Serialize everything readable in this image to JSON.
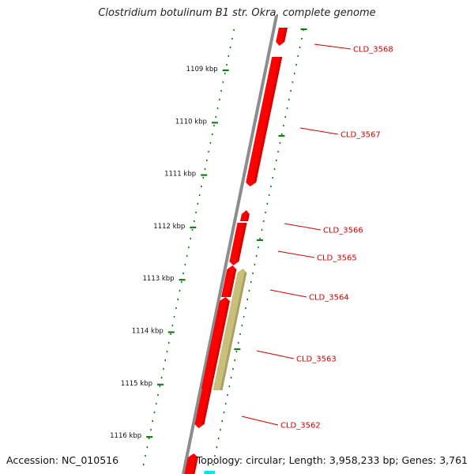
{
  "title": "Clostridium botulinum B1 str. Okra, complete genome",
  "accession_text": "Accession: NC_010516",
  "summary_text": "Topology: circular; Length: 3,958,233 bp; Genes: 3,761",
  "colors": {
    "backbone": "#8c8c8c",
    "tick": "#1a7a1a",
    "gene": "#ff0000",
    "gene_dark": "#b30000",
    "gene_other": "#c8c07a",
    "gene_other_dark": "#8f8750",
    "gene_edge": "#00e5ee",
    "label": "#cc0000"
  },
  "kbp_ticks": [
    "1109 kbp",
    "1110 kbp",
    "1111 kbp",
    "1112 kbp",
    "1113 kbp",
    "1114 kbp",
    "1115 kbp",
    "1116 kbp"
  ],
  "genes": [
    {
      "label": "CLD_3568"
    },
    {
      "label": "CLD_3567"
    },
    {
      "label": "CLD_3566"
    },
    {
      "label": "CLD_3565"
    },
    {
      "label": "CLD_3564"
    },
    {
      "label": "CLD_3563"
    },
    {
      "label": "CLD_3562"
    }
  ]
}
